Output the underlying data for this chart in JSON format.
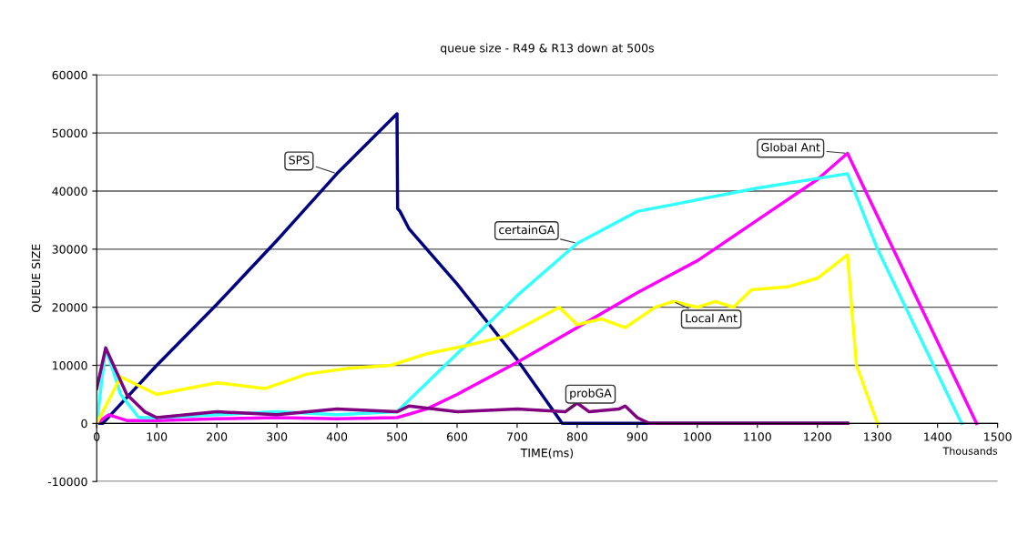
{
  "chart_data": {
    "type": "line",
    "title": "queue size - R49 & R13 down at 500s",
    "xlabel": "TIME(ms)",
    "ylabel": "QUEUE SIZE",
    "annotations": [
      "Thousands"
    ],
    "xlim": [
      0,
      1500
    ],
    "xticks": [
      0,
      100,
      200,
      300,
      400,
      500,
      600,
      700,
      800,
      900,
      1000,
      1100,
      1200,
      1300,
      1400,
      1500
    ],
    "ylim": [
      -10000,
      60000
    ],
    "yticks": [
      -10000,
      0,
      10000,
      20000,
      30000,
      40000,
      50000,
      60000
    ],
    "grid": "y",
    "legend": false,
    "series": [
      {
        "name": "SPS",
        "color": "#000080",
        "x": [
          0,
          10,
          100,
          200,
          300,
          400,
          500,
          501,
          505,
          520,
          600,
          700,
          775,
          1250
        ],
        "values": [
          0,
          0,
          10000,
          20500,
          31500,
          43000,
          53300,
          37000,
          36500,
          33500,
          24000,
          11000,
          0,
          0
        ]
      },
      {
        "name": "Global Ant",
        "color": "#ff00ff",
        "x": [
          0,
          20,
          50,
          100,
          200,
          300,
          400,
          500,
          550,
          600,
          700,
          800,
          900,
          1000,
          1100,
          1200,
          1250,
          1465
        ],
        "values": [
          0,
          1500,
          500,
          500,
          800,
          1000,
          800,
          1000,
          2500,
          5000,
          10500,
          16500,
          22500,
          28000,
          35000,
          42000,
          46500,
          0
        ]
      },
      {
        "name": "certainGA",
        "color": "#33ffff",
        "x": [
          0,
          15,
          40,
          70,
          100,
          200,
          300,
          400,
          500,
          600,
          700,
          800,
          900,
          1000,
          1100,
          1250,
          1300,
          1440
        ],
        "values": [
          0,
          13000,
          5000,
          1000,
          1000,
          1500,
          2000,
          1500,
          2000,
          12000,
          22000,
          31000,
          36500,
          38500,
          40500,
          43000,
          30000,
          0
        ]
      },
      {
        "name": "Local Ant",
        "color": "#ffff00",
        "x": [
          0,
          40,
          100,
          200,
          280,
          350,
          420,
          490,
          550,
          620,
          680,
          770,
          800,
          840,
          880,
          930,
          960,
          1000,
          1030,
          1060,
          1090,
          1150,
          1200,
          1250,
          1257,
          1265,
          1300
        ],
        "values": [
          0,
          8000,
          5000,
          7000,
          6000,
          8500,
          9500,
          10000,
          12000,
          13500,
          15000,
          20000,
          17000,
          18000,
          16500,
          20000,
          21000,
          20000,
          21000,
          20000,
          23000,
          23500,
          25000,
          29000,
          20000,
          10000,
          0
        ]
      },
      {
        "name": "probGA",
        "color": "#800080",
        "x": [
          0,
          15,
          50,
          80,
          100,
          200,
          300,
          400,
          500,
          520,
          600,
          700,
          780,
          800,
          820,
          870,
          880,
          900,
          920,
          1250
        ],
        "values": [
          6000,
          13000,
          5000,
          2000,
          1000,
          2000,
          1500,
          2500,
          2000,
          3000,
          2000,
          2500,
          2000,
          3500,
          2000,
          2500,
          3000,
          1000,
          0,
          0
        ]
      }
    ]
  }
}
